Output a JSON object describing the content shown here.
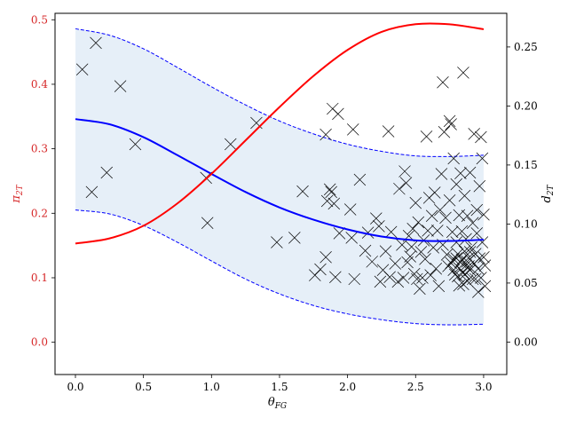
{
  "chart_data": {
    "type": "line",
    "title": "",
    "xlabel": "θ",
    "xlabel_sub": "FG",
    "ylabel_left": "π",
    "ylabel_left_sub": "2T",
    "ylabel_right": "d",
    "ylabel_right_sub": "2T",
    "xlim": [
      -0.15,
      3.17
    ],
    "ylim_left": [
      -0.05,
      0.51
    ],
    "ylim_right": [
      -0.0275,
      0.2785
    ],
    "grid": false,
    "legend": "none",
    "xticks": [
      "0.0",
      "0.5",
      "1.0",
      "1.5",
      "2.0",
      "2.5",
      "3.0"
    ],
    "yticks_left": [
      "0.0",
      "0.1",
      "0.2",
      "0.3",
      "0.4",
      "0.5"
    ],
    "yticks_right": [
      "0.00",
      "0.05",
      "0.10",
      "0.15",
      "0.20",
      "0.25"
    ],
    "colors": {
      "red_curve": "#ff0000",
      "blue_curve": "#0000ff",
      "band_fill": "#e6eff8",
      "band_edge": "#0000ff",
      "markers": "#000000",
      "left_axis_text": "#d62728",
      "right_axis_text": "#000000"
    },
    "series": [
      {
        "axis": "right",
        "x": [
          0,
          0.25,
          0.5,
          0.75,
          1.0,
          1.25,
          1.5,
          1.75,
          2.0,
          2.25,
          2.5,
          2.75,
          3.0
        ],
        "values": [
          0.0835,
          0.0878,
          0.0985,
          0.1175,
          0.1425,
          0.1708,
          0.1991,
          0.2255,
          0.2475,
          0.2628,
          0.2693,
          0.2692,
          0.265
        ]
      },
      {
        "axis": "left",
        "x": [
          0,
          0.25,
          0.5,
          0.75,
          1.0,
          1.25,
          1.5,
          1.75,
          2.0,
          2.25,
          2.5,
          2.75,
          3.0
        ],
        "values": [
          0.346,
          0.338,
          0.318,
          0.29,
          0.261,
          0.233,
          0.209,
          0.19,
          0.175,
          0.164,
          0.158,
          0.157,
          0.159
        ]
      },
      {
        "axis": "left",
        "x": [
          0,
          0.25,
          0.5,
          0.75,
          1.0,
          1.25,
          1.5,
          1.75,
          2.0,
          2.25,
          2.5,
          2.75,
          3.0
        ],
        "values": [
          0.486,
          0.476,
          0.455,
          0.426,
          0.396,
          0.368,
          0.343,
          0.323,
          0.307,
          0.296,
          0.289,
          0.288,
          0.29
        ]
      },
      {
        "axis": "left",
        "x": [
          0,
          0.25,
          0.5,
          0.75,
          1.0,
          1.25,
          1.5,
          1.75,
          2.0,
          2.25,
          2.5,
          2.75,
          3.0
        ],
        "values": [
          0.205,
          0.199,
          0.181,
          0.155,
          0.126,
          0.098,
          0.075,
          0.057,
          0.044,
          0.035,
          0.029,
          0.027,
          0.028
        ]
      }
    ],
    "scatter": [
      [
        0.05,
        0.423
      ],
      [
        0.12,
        0.233
      ],
      [
        0.15,
        0.464
      ],
      [
        0.23,
        0.263
      ],
      [
        0.33,
        0.397
      ],
      [
        0.44,
        0.307
      ],
      [
        0.96,
        0.255
      ],
      [
        0.97,
        0.185
      ],
      [
        1.14,
        0.307
      ],
      [
        1.33,
        0.34
      ],
      [
        1.48,
        0.155
      ],
      [
        1.61,
        0.162
      ],
      [
        1.67,
        0.234
      ],
      [
        1.76,
        0.104
      ],
      [
        1.8,
        0.113
      ],
      [
        1.84,
        0.322
      ],
      [
        1.84,
        0.132
      ],
      [
        1.85,
        0.219
      ],
      [
        1.87,
        0.237
      ],
      [
        1.88,
        0.233
      ],
      [
        1.89,
        0.362
      ],
      [
        1.9,
        0.215
      ],
      [
        1.91,
        0.101
      ],
      [
        1.93,
        0.354
      ],
      [
        1.94,
        0.169
      ],
      [
        2.02,
        0.206
      ],
      [
        2.03,
        0.162
      ],
      [
        2.04,
        0.33
      ],
      [
        2.05,
        0.098
      ],
      [
        2.09,
        0.252
      ],
      [
        2.13,
        0.142
      ],
      [
        2.15,
        0.17
      ],
      [
        2.18,
        0.125
      ],
      [
        2.21,
        0.192
      ],
      [
        2.23,
        0.18
      ],
      [
        2.24,
        0.094
      ],
      [
        2.26,
        0.112
      ],
      [
        2.28,
        0.141
      ],
      [
        2.3,
        0.327
      ],
      [
        2.31,
        0.101
      ],
      [
        2.32,
        0.171
      ],
      [
        2.35,
        0.122
      ],
      [
        2.37,
        0.094
      ],
      [
        2.38,
        0.238
      ],
      [
        2.4,
        0.151
      ],
      [
        2.41,
        0.1
      ],
      [
        2.42,
        0.265
      ],
      [
        2.43,
        0.247
      ],
      [
        2.44,
        0.124
      ],
      [
        2.45,
        0.165
      ],
      [
        2.46,
        0.133
      ],
      [
        2.47,
        0.148
      ],
      [
        2.48,
        0.176
      ],
      [
        2.49,
        0.106
      ],
      [
        2.5,
        0.216
      ],
      [
        2.51,
        0.098
      ],
      [
        2.52,
        0.186
      ],
      [
        2.53,
        0.083
      ],
      [
        2.54,
        0.14
      ],
      [
        2.55,
        0.1
      ],
      [
        2.56,
        0.158
      ],
      [
        2.57,
        0.129
      ],
      [
        2.58,
        0.319
      ],
      [
        2.59,
        0.173
      ],
      [
        2.6,
        0.224
      ],
      [
        2.61,
        0.104
      ],
      [
        2.62,
        0.196
      ],
      [
        2.63,
        0.147
      ],
      [
        2.64,
        0.232
      ],
      [
        2.65,
        0.114
      ],
      [
        2.66,
        0.173
      ],
      [
        2.67,
        0.087
      ],
      [
        2.68,
        0.205
      ],
      [
        2.69,
        0.261
      ],
      [
        2.7,
        0.151
      ],
      [
        2.7,
        0.403
      ],
      [
        2.71,
        0.326
      ],
      [
        2.72,
        0.193
      ],
      [
        2.73,
        0.136
      ],
      [
        2.74,
        0.118
      ],
      [
        2.75,
        0.22
      ],
      [
        2.75,
        0.343
      ],
      [
        2.76,
        0.338
      ],
      [
        2.77,
        0.171
      ],
      [
        2.78,
        0.129
      ],
      [
        2.78,
        0.285
      ],
      [
        2.79,
        0.105
      ],
      [
        2.8,
        0.245
      ],
      [
        2.8,
        0.155
      ],
      [
        2.81,
        0.137
      ],
      [
        2.82,
        0.088
      ],
      [
        2.82,
        0.197
      ],
      [
        2.83,
        0.124
      ],
      [
        2.83,
        0.262
      ],
      [
        2.84,
        0.172
      ],
      [
        2.85,
        0.418
      ],
      [
        2.85,
        0.108
      ],
      [
        2.86,
        0.141
      ],
      [
        2.86,
        0.227
      ],
      [
        2.87,
        0.16
      ],
      [
        2.87,
        0.119
      ],
      [
        2.88,
        0.095
      ],
      [
        2.88,
        0.196
      ],
      [
        2.89,
        0.131
      ],
      [
        2.9,
        0.263
      ],
      [
        2.9,
        0.112
      ],
      [
        2.91,
        0.147
      ],
      [
        2.92,
        0.185
      ],
      [
        2.92,
        0.098
      ],
      [
        2.93,
        0.122
      ],
      [
        2.93,
        0.323
      ],
      [
        2.94,
        0.137
      ],
      [
        2.95,
        0.205
      ],
      [
        2.95,
        0.169
      ],
      [
        2.96,
        0.114
      ],
      [
        2.96,
        0.078
      ],
      [
        2.97,
        0.242
      ],
      [
        2.97,
        0.13
      ],
      [
        2.98,
        0.318
      ],
      [
        2.98,
        0.1
      ],
      [
        2.99,
        0.155
      ],
      [
        2.99,
        0.285
      ],
      [
        3.0,
        0.132
      ],
      [
        3.0,
        0.198
      ],
      [
        3.01,
        0.119
      ],
      [
        3.01,
        0.087
      ],
      [
        2.8,
        0.13
      ],
      [
        2.82,
        0.115
      ],
      [
        2.84,
        0.128
      ],
      [
        2.86,
        0.105
      ],
      [
        2.88,
        0.125
      ],
      [
        2.9,
        0.14
      ],
      [
        2.76,
        0.123
      ],
      [
        2.78,
        0.112
      ],
      [
        2.81,
        0.102
      ],
      [
        2.85,
        0.09
      ],
      [
        2.89,
        0.118
      ],
      [
        2.94,
        0.098
      ]
    ]
  }
}
